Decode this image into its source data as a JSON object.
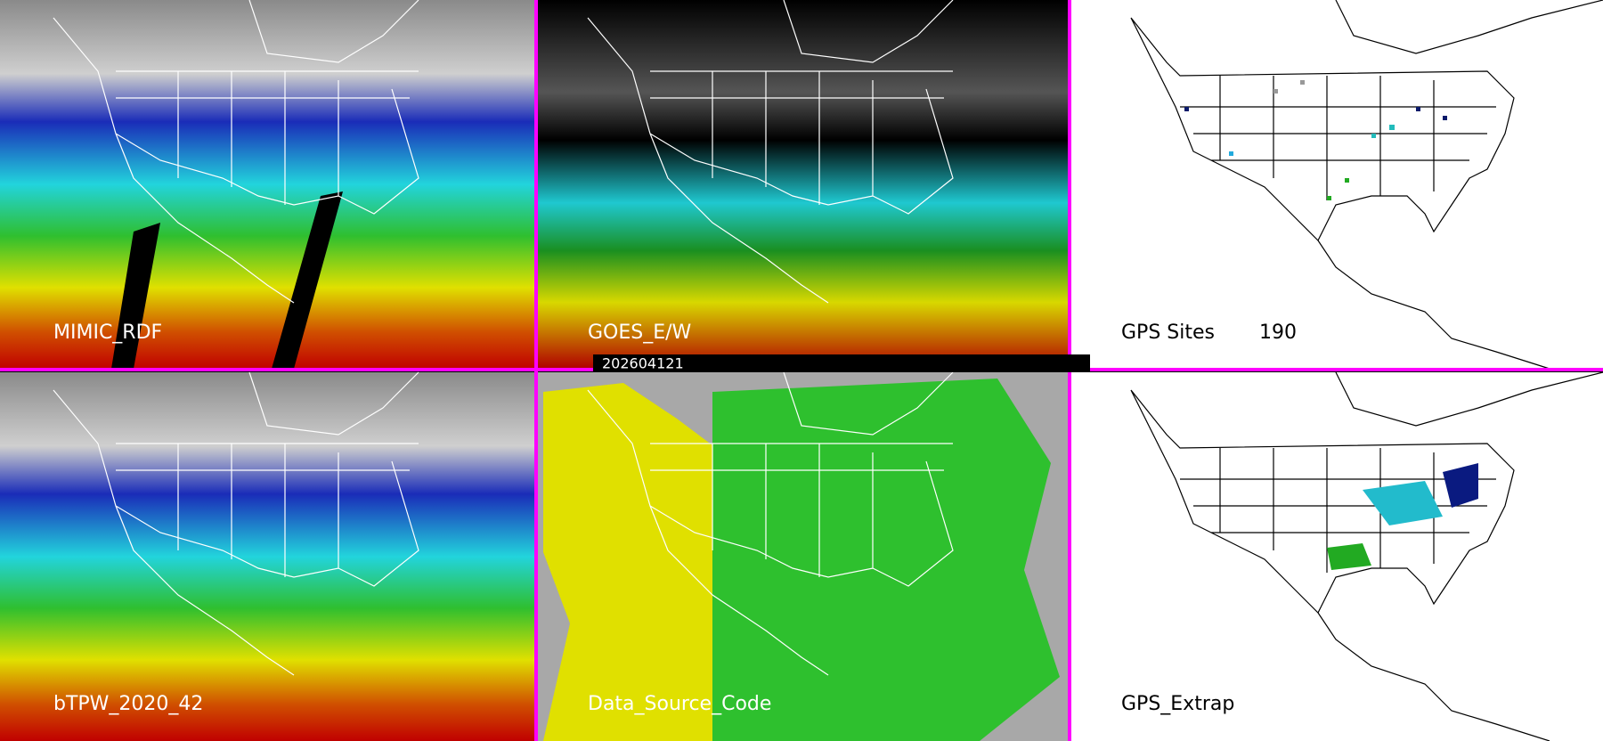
{
  "panels": [
    {
      "label": "MIMIC_RDF"
    },
    {
      "label": "GOES_E/W"
    },
    {
      "label": "GPS Sites",
      "count": 190
    },
    {
      "label": "bTPW_2020_42"
    },
    {
      "label": "Data_Source_Code"
    },
    {
      "label": "GPS_Extrap"
    }
  ],
  "timestamp": "202604121"
}
